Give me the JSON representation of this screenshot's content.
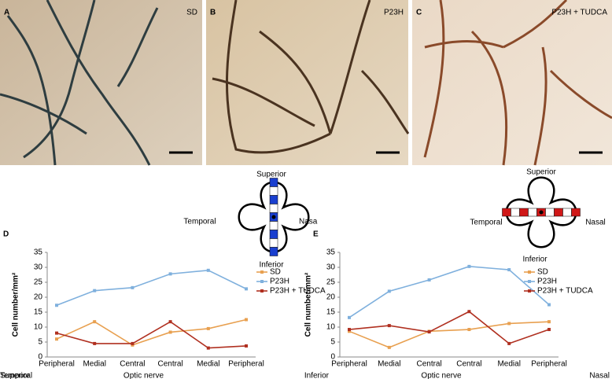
{
  "photos": [
    {
      "label": "A",
      "title": "SD"
    },
    {
      "label": "B",
      "title": "P23H"
    },
    {
      "label": "C",
      "title": "P23H + TUDCA"
    }
  ],
  "chart_data": [
    {
      "type": "line",
      "panel_label": "D",
      "ylabel": "Cell number/mm²",
      "categories": [
        "Peripheral",
        "Medial",
        "Central",
        "Central",
        "Medial",
        "Peripheral"
      ],
      "axis_notes": [
        "Superior",
        "Optic nerve",
        "Inferior"
      ],
      "diagram": [
        "Superior",
        "Temporal",
        "Nasa",
        "Inferior"
      ],
      "ylim": [
        0,
        35
      ],
      "yticks": [
        0,
        5,
        10,
        15,
        20,
        25,
        30,
        35
      ],
      "series": [
        {
          "name": "SD",
          "color": "#e8a050",
          "values": [
            6,
            11.8,
            4,
            8.3,
            9.5,
            12.5
          ]
        },
        {
          "name": "P23H",
          "color": "#7fb0dd",
          "values": [
            17.3,
            22.2,
            23.2,
            27.8,
            29,
            22.8
          ]
        },
        {
          "name": "P23H + TUDCA",
          "color": "#b03020",
          "values": [
            8,
            4.5,
            4.5,
            11.8,
            3,
            3.7
          ]
        }
      ]
    },
    {
      "type": "line",
      "panel_label": "E",
      "ylabel": "Cell number/mm²",
      "categories": [
        "Peripheral",
        "Medial",
        "Central",
        "Central",
        "Medial",
        "Peripheral"
      ],
      "axis_notes": [
        "Temporal",
        "Optic nerve",
        "Nasal"
      ],
      "diagram": [
        "Superior",
        "Temporal",
        "Nasal",
        "Inferior"
      ],
      "ylim": [
        0,
        35
      ],
      "yticks": [
        0,
        5,
        10,
        15,
        20,
        25,
        30,
        35
      ],
      "series": [
        {
          "name": "SD",
          "color": "#e8a050",
          "values": [
            8.6,
            3.2,
            8.6,
            9.2,
            11.2,
            11.8
          ]
        },
        {
          "name": "P23H",
          "color": "#7fb0dd",
          "values": [
            13.2,
            22,
            25.8,
            30.3,
            29.2,
            17.5
          ]
        },
        {
          "name": "P23H + TUDCA",
          "color": "#b03020",
          "values": [
            9.2,
            10.5,
            8.4,
            15.2,
            4.5,
            9.2
          ]
        }
      ]
    }
  ]
}
